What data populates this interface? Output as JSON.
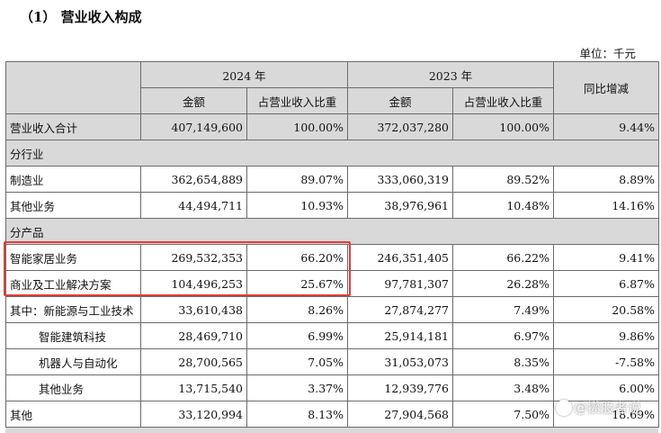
{
  "heading": "（1）  营业收入构成",
  "unit": "单位：千元",
  "header": {
    "year_2024": "2024 年",
    "year_2023": "2023 年",
    "amount": "金额",
    "share": "占营业收入比重",
    "yoy": "同比增减"
  },
  "rows": [
    {
      "label": "营业收入合计",
      "a2024": "407,149,600",
      "s2024": "100.00%",
      "a2023": "372,037,280",
      "s2023": "100.00%",
      "yoy": "9.44%"
    },
    {
      "label": "制造业",
      "a2024": "362,654,889",
      "s2024": "89.07%",
      "a2023": "333,060,319",
      "s2023": "89.52%",
      "yoy": "8.89%"
    },
    {
      "label": "其他业务",
      "a2024": "44,494,711",
      "s2024": "10.93%",
      "a2023": "38,976,961",
      "s2023": "10.48%",
      "yoy": "14.16%"
    },
    {
      "label": "智能家居业务",
      "a2024": "269,532,353",
      "s2024": "66.20%",
      "a2023": "246,351,405",
      "s2023": "66.22%",
      "yoy": "9.41%"
    },
    {
      "label": "商业及工业解决方案",
      "a2024": "104,496,253",
      "s2024": "25.67%",
      "a2023": "97,781,307",
      "s2023": "26.28%",
      "yoy": "6.87%"
    },
    {
      "label": "其中：新能源与工业技术",
      "a2024": "33,610,438",
      "s2024": "8.26%",
      "a2023": "27,874,277",
      "s2023": "7.49%",
      "yoy": "20.58%"
    },
    {
      "label": "智能建筑科技",
      "a2024": "28,469,710",
      "s2024": "6.99%",
      "a2023": "25,914,181",
      "s2023": "6.97%",
      "yoy": "9.86%"
    },
    {
      "label": "机器人与自动化",
      "a2024": "28,700,565",
      "s2024": "7.05%",
      "a2023": "31,053,073",
      "s2023": "8.35%",
      "yoy": "-7.58%"
    },
    {
      "label": "其他业务",
      "a2024": "13,715,540",
      "s2024": "3.37%",
      "a2023": "12,939,776",
      "s2023": "3.48%",
      "yoy": "6.00%"
    },
    {
      "label": "其他",
      "a2024": "33,120,994",
      "s2024": "8.13%",
      "a2023": "27,904,568",
      "s2023": "7.50%",
      "yoy": "18.69%"
    }
  ],
  "sections": {
    "by_industry": "分行业",
    "by_product": "分产品"
  },
  "watermark": "@攒股者说",
  "colors": {
    "header_bg": "#d9d9d9",
    "highlight": "#e23b3b"
  }
}
